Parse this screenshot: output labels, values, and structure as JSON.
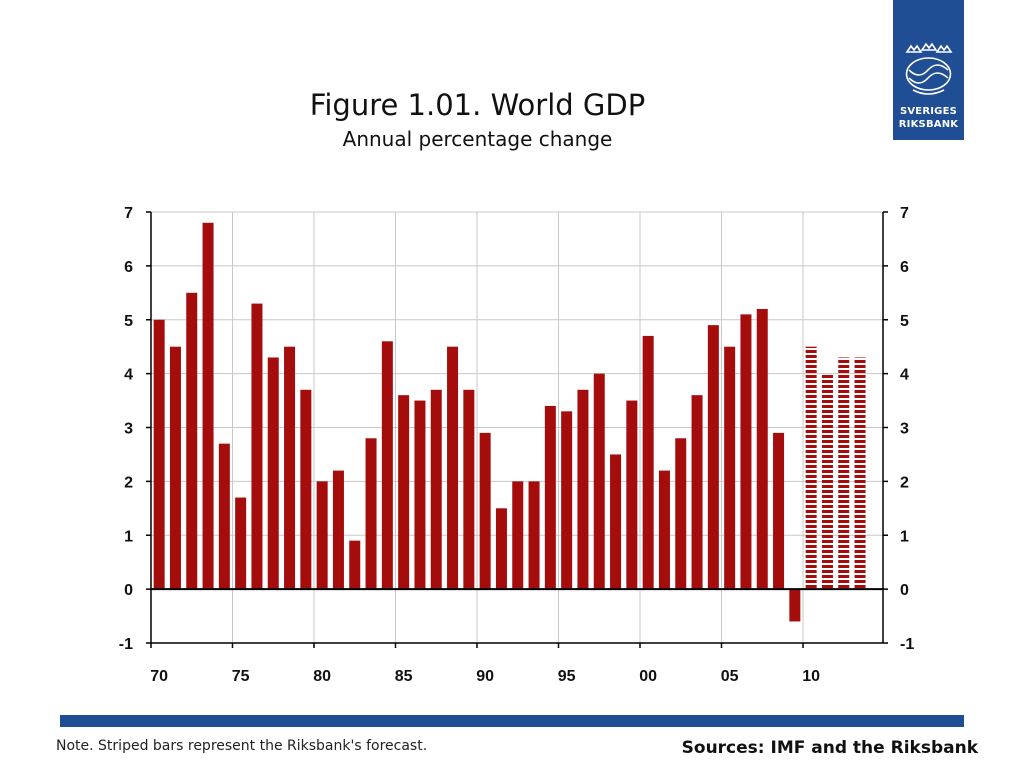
{
  "logo": {
    "line1": "SVERIGES",
    "line2": "RIKSBANK",
    "brand_color": "#1f4e94"
  },
  "footer": {
    "note": "Note. Striped bars represent the Riksbank's forecast.",
    "sources": "Sources: IMF and the Riksbank"
  },
  "chart_data": {
    "type": "bar",
    "title": "Figure 1.01. World GDP",
    "subtitle": "Annual percentage change",
    "xlabel": "",
    "ylabel": "",
    "ylim": [
      -1,
      7
    ],
    "y_ticks": [
      -1,
      0,
      1,
      2,
      3,
      4,
      5,
      6,
      7
    ],
    "x_tick_labels": [
      "70",
      "75",
      "80",
      "85",
      "90",
      "95",
      "00",
      "05",
      "10"
    ],
    "x_tick_years": [
      1970,
      1975,
      1980,
      1985,
      1990,
      1995,
      2000,
      2005,
      2010
    ],
    "grid": "vertical",
    "bar_color": "#a50d0d",
    "forecast_style": "striped",
    "categories": [
      1970,
      1971,
      1972,
      1973,
      1974,
      1975,
      1976,
      1977,
      1978,
      1979,
      1980,
      1981,
      1982,
      1983,
      1984,
      1985,
      1986,
      1987,
      1988,
      1989,
      1990,
      1991,
      1992,
      1993,
      1994,
      1995,
      1996,
      1997,
      1998,
      1999,
      2000,
      2001,
      2002,
      2003,
      2004,
      2005,
      2006,
      2007,
      2008,
      2009,
      2010,
      2011,
      2012,
      2013
    ],
    "values": [
      5.0,
      4.5,
      5.5,
      6.8,
      2.7,
      1.7,
      5.3,
      4.3,
      4.5,
      3.7,
      2.0,
      2.2,
      0.9,
      2.8,
      4.6,
      3.6,
      3.5,
      3.7,
      4.5,
      3.7,
      2.9,
      1.5,
      2.0,
      2.0,
      3.4,
      3.3,
      3.7,
      4.0,
      2.5,
      3.5,
      4.7,
      2.2,
      2.8,
      3.6,
      4.9,
      4.5,
      5.1,
      5.2,
      2.9,
      -0.6,
      4.5,
      4.0,
      4.3,
      4.3
    ],
    "forecast": [
      false,
      false,
      false,
      false,
      false,
      false,
      false,
      false,
      false,
      false,
      false,
      false,
      false,
      false,
      false,
      false,
      false,
      false,
      false,
      false,
      false,
      false,
      false,
      false,
      false,
      false,
      false,
      false,
      false,
      false,
      false,
      false,
      false,
      false,
      false,
      false,
      false,
      false,
      false,
      false,
      true,
      true,
      true,
      true
    ]
  }
}
